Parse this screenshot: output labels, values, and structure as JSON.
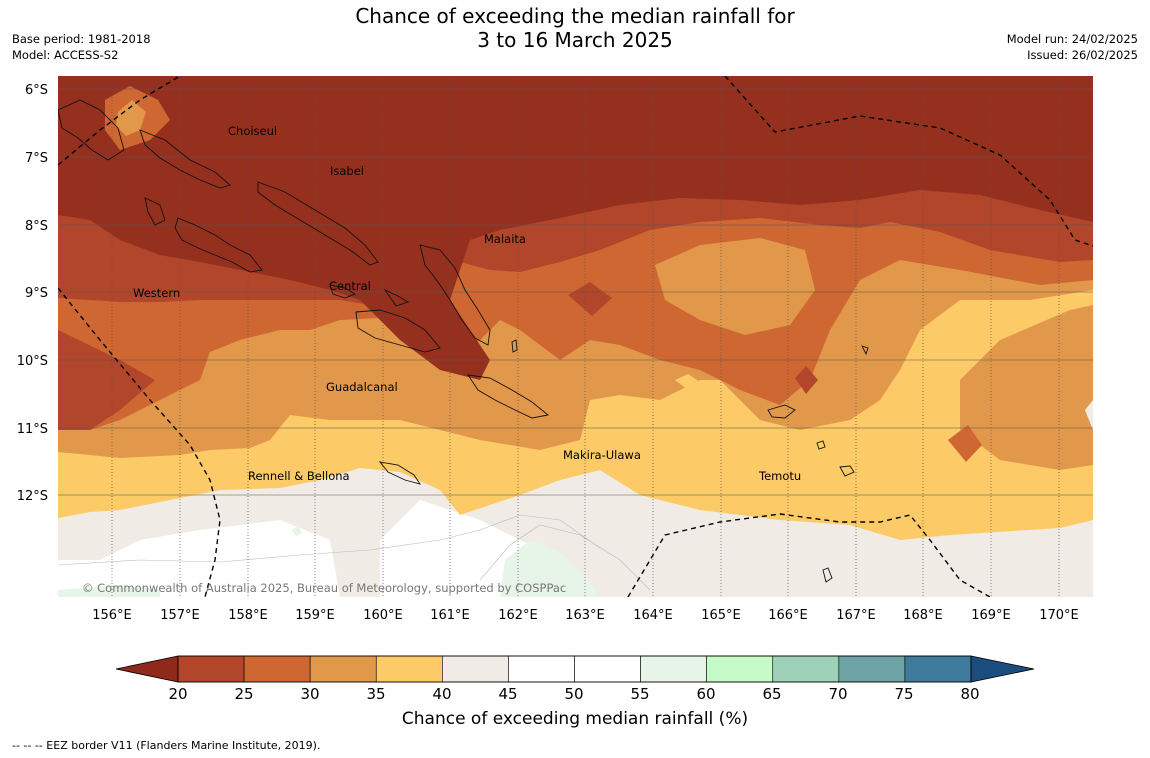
{
  "header": {
    "title_line1": "Chance of exceeding the median rainfall for",
    "title_line2": "3 to 16 March 2025",
    "base_period": "Base period: 1981-2018",
    "model": "Model: ACCESS-S2",
    "model_run": "Model run: 24/02/2025",
    "issued": "Issued: 26/02/2025"
  },
  "map": {
    "lat_labels": [
      "6°S",
      "7°S",
      "8°S",
      "9°S",
      "10°S",
      "11°S",
      "12°S"
    ],
    "lon_labels": [
      "156°E",
      "157°E",
      "158°E",
      "159°E",
      "160°E",
      "161°E",
      "162°E",
      "163°E",
      "164°E",
      "165°E",
      "166°E",
      "167°E",
      "168°E",
      "169°E",
      "170°E"
    ],
    "places": [
      "Choiseul",
      "Isabel",
      "Malaita",
      "Western",
      "Central",
      "Guadalcanal",
      "Makira-Ulawa",
      "Rennell & Bellona",
      "Temotu"
    ],
    "copyright": "© Commonwealth of Australia 2025, Bureau of Meteorology, supported by COSPPac"
  },
  "colorbar": {
    "ticks": [
      "20",
      "25",
      "30",
      "35",
      "40",
      "45",
      "50",
      "55",
      "60",
      "65",
      "70",
      "75",
      "80"
    ],
    "colors": [
      "#8f2a1a",
      "#b2462a",
      "#cf6733",
      "#e2984a",
      "#fcca66",
      "#f0ebe4",
      "#ffffff",
      "#ffffff",
      "#e6f5e8",
      "#c6fac6",
      "#9ed1b8",
      "#6da3a5",
      "#3e7a9b",
      "#1b4d7e"
    ],
    "label": "Chance of exceeding median rainfall (%)"
  },
  "legend_note": "--  --  -- EEZ border V11 (Flanders Marine Institute, 2019)."
}
